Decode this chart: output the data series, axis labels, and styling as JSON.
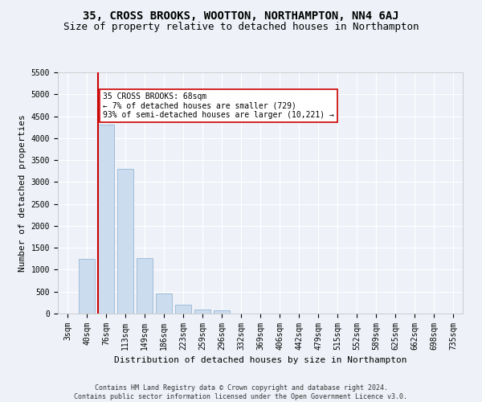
{
  "title": "35, CROSS BROOKS, WOOTTON, NORTHAMPTON, NN4 6AJ",
  "subtitle": "Size of property relative to detached houses in Northampton",
  "xlabel": "Distribution of detached houses by size in Northampton",
  "ylabel": "Number of detached properties",
  "footer_line1": "Contains HM Land Registry data © Crown copyright and database right 2024.",
  "footer_line2": "Contains public sector information licensed under the Open Government Licence v3.0.",
  "bar_labels": [
    "3sqm",
    "40sqm",
    "76sqm",
    "113sqm",
    "149sqm",
    "186sqm",
    "223sqm",
    "259sqm",
    "296sqm",
    "332sqm",
    "369sqm",
    "406sqm",
    "442sqm",
    "479sqm",
    "515sqm",
    "552sqm",
    "589sqm",
    "625sqm",
    "662sqm",
    "698sqm",
    "735sqm"
  ],
  "bar_values": [
    0,
    1250,
    4300,
    3300,
    1270,
    450,
    200,
    100,
    70,
    0,
    0,
    0,
    0,
    0,
    0,
    0,
    0,
    0,
    0,
    0,
    0
  ],
  "bar_color": "#ccdcef",
  "bar_edge_color": "#a0bcd8",
  "vline_color": "#cc0000",
  "annotation_text": "35 CROSS BROOKS: 68sqm\n← 7% of detached houses are smaller (729)\n93% of semi-detached houses are larger (10,221) →",
  "annotation_box_color": "#ffffff",
  "annotation_box_edge": "#cc0000",
  "ylim": [
    0,
    5500
  ],
  "yticks": [
    0,
    500,
    1000,
    1500,
    2000,
    2500,
    3000,
    3500,
    4000,
    4500,
    5000,
    5500
  ],
  "background_color": "#eef2f8",
  "plot_bg_color": "#eef2f8",
  "grid_color": "#ffffff",
  "title_fontsize": 10,
  "subtitle_fontsize": 9,
  "axis_label_fontsize": 8,
  "tick_fontsize": 7,
  "footer_fontsize": 6,
  "annot_fontsize": 7
}
